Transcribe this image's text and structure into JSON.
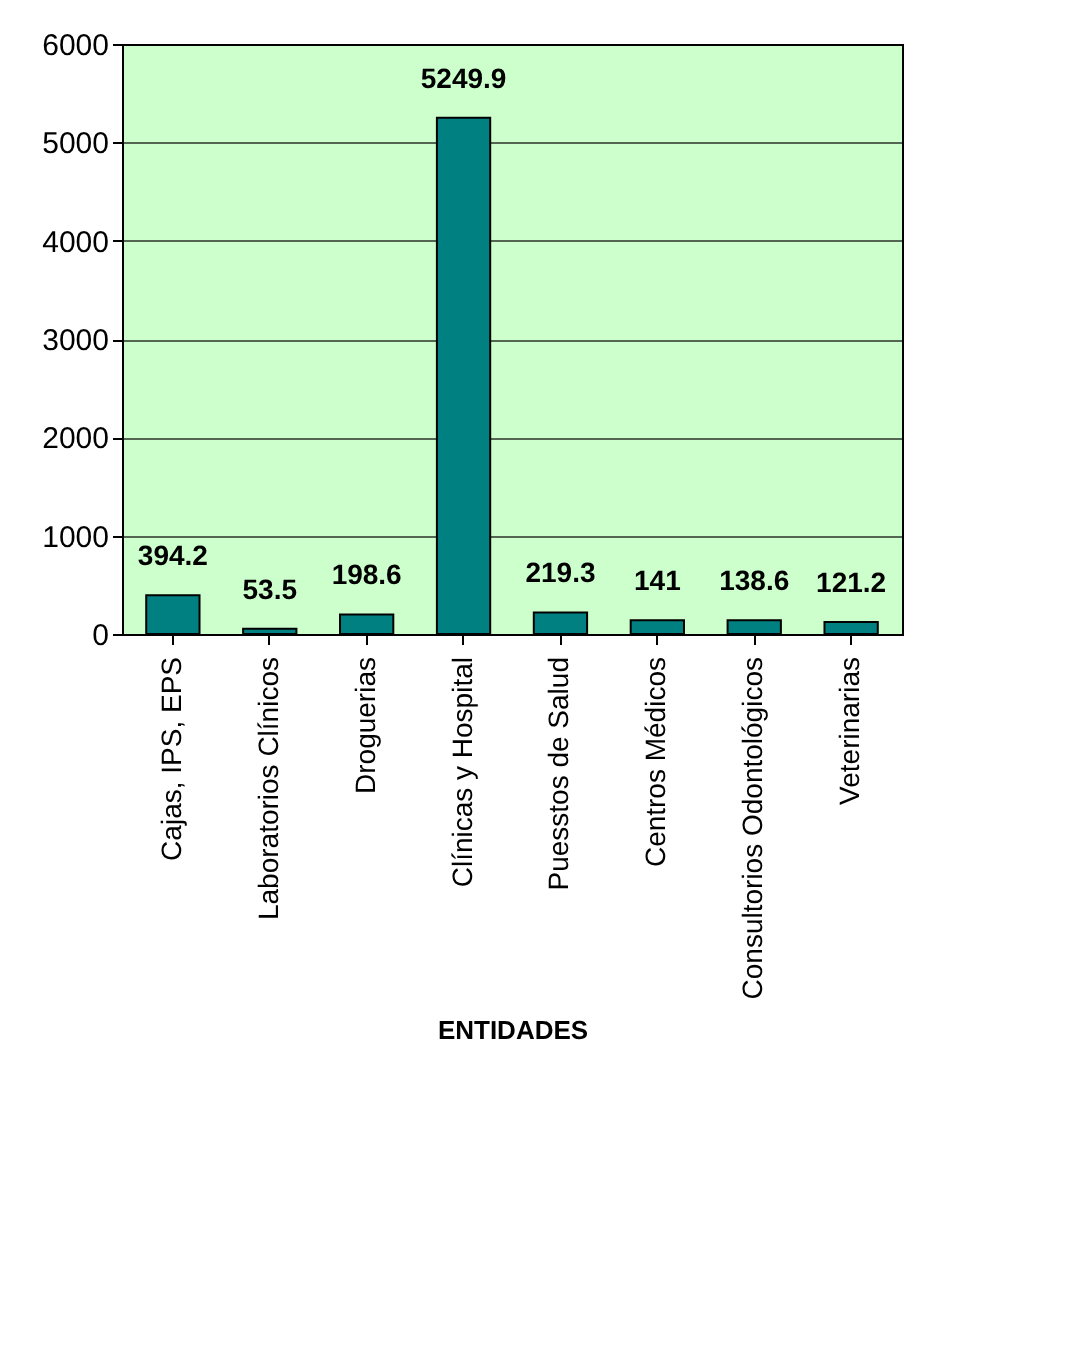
{
  "chart_data": {
    "type": "bar",
    "xlabel": "ENTIDADES",
    "categories": [
      "Cajas, IPS, EPS",
      "Laboratorios Clínicos",
      "Droguerias",
      "Clínicas y Hospital",
      "Puesstos de Salud",
      "Centros Médicos",
      "Consultorios Odontológicos",
      "Veterinarias"
    ],
    "values": [
      394.2,
      53.5,
      198.6,
      5249.9,
      219.3,
      141,
      138.6,
      121.2
    ],
    "color": "#008080",
    "ylim": [
      0,
      6000
    ],
    "yticks": [
      0,
      1000,
      2000,
      3000,
      4000,
      5000,
      6000
    ],
    "grid": "y",
    "data_labels": true
  }
}
